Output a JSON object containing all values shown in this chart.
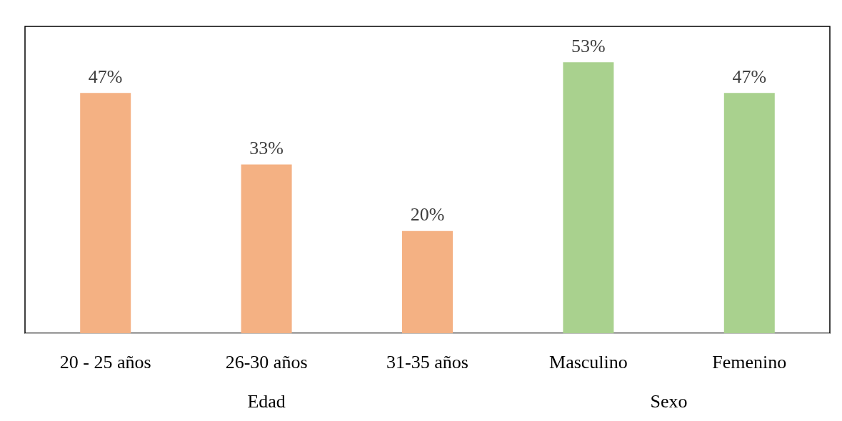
{
  "chart_data": {
    "type": "bar",
    "categories": [
      "20 - 25 años",
      "26-30 años",
      "31-35 años",
      "Masculino",
      "Femenino"
    ],
    "series": [
      {
        "color": "#f4b183",
        "values": [
          47,
          33,
          20,
          null,
          null
        ],
        "value_labels": [
          "47%",
          "33%",
          "20%",
          null,
          null
        ]
      },
      {
        "color": "#a9d18e",
        "values": [
          null,
          null,
          null,
          53,
          47
        ],
        "value_labels": [
          null,
          null,
          null,
          "53%",
          "47%"
        ]
      }
    ],
    "annotations": [
      "Edad",
      "Sexo"
    ]
  }
}
